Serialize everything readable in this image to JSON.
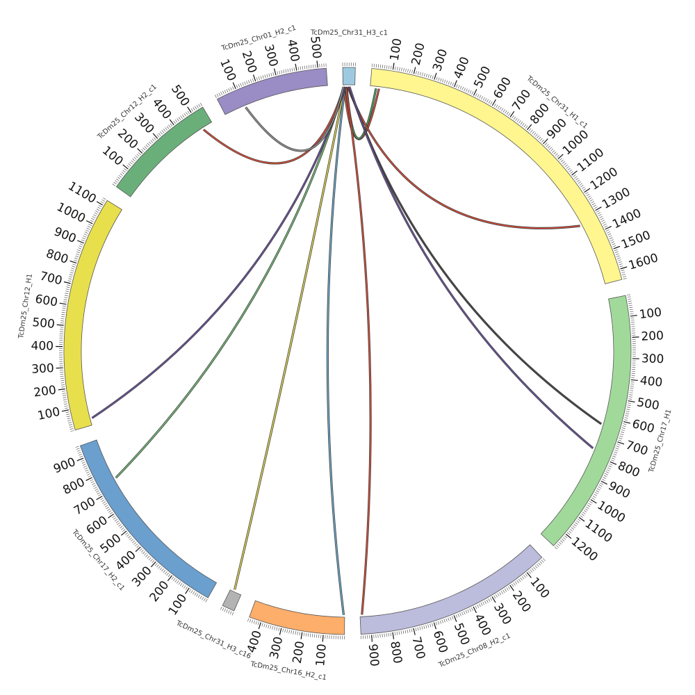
{
  "chart_data": {
    "type": "chord",
    "segments": [
      {
        "id": "chr31_h3",
        "name": "TcDm25_Chr31_H3_c1",
        "length": 60,
        "color": "#9ecae1",
        "ticks": []
      },
      {
        "id": "chr31_h1",
        "name": "TcDm25_Chr31_H1_c1",
        "length": 1650,
        "color": "#fff68f",
        "ticks": [
          100,
          200,
          300,
          400,
          500,
          600,
          700,
          800,
          900,
          1000,
          1100,
          1200,
          1300,
          1400,
          1500,
          1600
        ]
      },
      {
        "id": "chr17_h1",
        "name": "TcDm25_Chr17_H1",
        "length": 1280,
        "color": "#a1d99b",
        "ticks": [
          100,
          200,
          300,
          400,
          500,
          600,
          700,
          800,
          900,
          1000,
          1100,
          1200
        ]
      },
      {
        "id": "chr08_h2",
        "name": "TcDm25_Chr08_H2_c1",
        "length": 950,
        "color": "#bcbddc",
        "ticks": [
          100,
          200,
          300,
          400,
          500,
          600,
          700,
          800,
          900
        ]
      },
      {
        "id": "chr16_h2",
        "name": "TcDm25_Chr16_H2_c1",
        "length": 460,
        "color": "#fdae6b",
        "ticks": [
          100,
          200,
          300,
          400
        ]
      },
      {
        "id": "chr31_h3_c16",
        "name": "TcDm25_Chr31_H3_c16",
        "length": 60,
        "color": "#b3b3b3",
        "ticks": []
      },
      {
        "id": "chr17_h2",
        "name": "TcDm25_Chr17_H2_c1",
        "length": 960,
        "color": "#6a9fce",
        "ticks": [
          100,
          200,
          300,
          400,
          500,
          600,
          700,
          800,
          900
        ]
      },
      {
        "id": "chr12_h1",
        "name": "TcDm25_Chr12_H1",
        "length": 1130,
        "color": "#e8df4d",
        "ticks": [
          100,
          200,
          300,
          400,
          500,
          600,
          700,
          800,
          900,
          1000,
          1100
        ]
      },
      {
        "id": "chr12_h2",
        "name": "TcDm25_Chr12_H2_c1",
        "length": 560,
        "color": "#6aaf7a",
        "ticks": [
          100,
          200,
          300,
          400,
          500
        ]
      },
      {
        "id": "chr01_h2",
        "name": "TcDm25_Chr01_H2_c1",
        "length": 540,
        "color": "#9a8cc4",
        "ticks": [
          100,
          200,
          300,
          400,
          500
        ]
      }
    ],
    "links": [
      {
        "from": "chr31_h3",
        "from_pos": 5,
        "to": "chr31_h1",
        "to_pos": 45,
        "color": "#e34a33"
      },
      {
        "from": "chr31_h3",
        "from_pos": 18,
        "to": "chr31_h1",
        "to_pos": 30,
        "color": "#41ab5d"
      },
      {
        "from": "chr31_h3",
        "from_pos": 24,
        "to": "chr31_h1",
        "to_pos": 1330,
        "color": "#e34a33"
      },
      {
        "from": "chr31_h3",
        "from_pos": 30,
        "to": "chr17_h1",
        "to_pos": 640,
        "color": "#444444"
      },
      {
        "from": "chr31_h3",
        "from_pos": 33,
        "to": "chr17_h1",
        "to_pos": 770,
        "color": "#6a51a3"
      },
      {
        "from": "chr31_h3",
        "from_pos": 14,
        "to": "chr08_h2",
        "to_pos": 940,
        "color": "#e34a33"
      },
      {
        "from": "chr31_h3",
        "from_pos": 10,
        "to": "chr16_h2",
        "to_pos": 5,
        "color": "#6baed6"
      },
      {
        "from": "chr31_h3",
        "from_pos": 8,
        "to": "chr31_h3_c16",
        "to_pos": 40,
        "color": "#e8df4d"
      },
      {
        "from": "chr31_h3",
        "from_pos": 6,
        "to": "chr17_h2",
        "to_pos": 745,
        "color": "#74c476"
      },
      {
        "from": "chr31_h3",
        "from_pos": 12,
        "to": "chr12_h1",
        "to_pos": 35,
        "color": "#6a51a3"
      },
      {
        "from": "chr31_h3",
        "from_pos": 4,
        "to": "chr12_h2",
        "to_pos": 505,
        "color": "#e34a33"
      },
      {
        "from": "chr31_h3",
        "from_pos": 2,
        "to": "chr01_h2",
        "to_pos": 110,
        "color": "#999999"
      }
    ]
  }
}
